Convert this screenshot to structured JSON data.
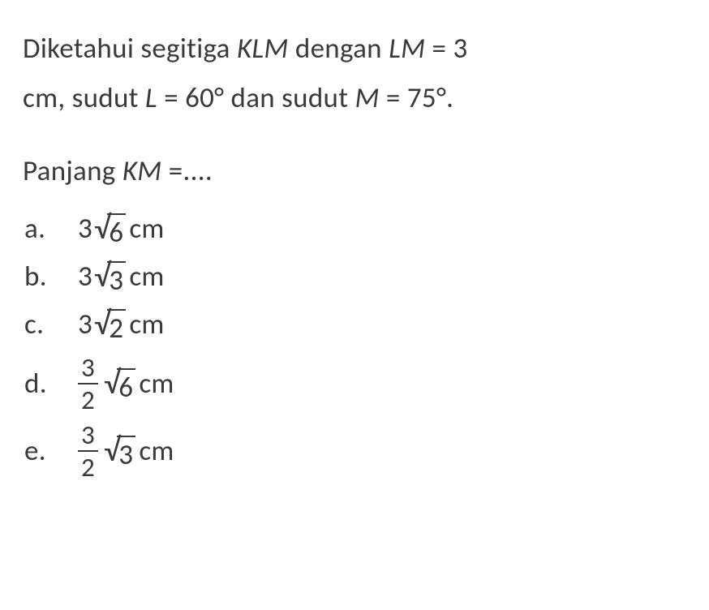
{
  "question": {
    "line1_pre": "Diketahui segitiga ",
    "line1_var1": "KLM",
    "line1_mid": " dengan ",
    "line1_var2": "LM",
    "line1_post": " = 3",
    "line2_pre": "cm, sudut ",
    "line2_var1": "L",
    "line2_mid1": " = 60° dan sudut ",
    "line2_var2": "M",
    "line2_post": " = 75°.",
    "ask_pre": "Panjang ",
    "ask_var": "KM",
    "ask_post": " =...."
  },
  "options": {
    "a": {
      "label": "a.",
      "coef": "3",
      "radicand": "6",
      "unit": " cm",
      "hasFraction": false
    },
    "b": {
      "label": "b.",
      "coef": "3",
      "radicand": "3",
      "unit": " cm",
      "hasFraction": false
    },
    "c": {
      "label": "c.",
      "coef": "3",
      "radicand": "2",
      "unit": " cm",
      "hasFraction": false
    },
    "d": {
      "label": "d.",
      "numerator": "3",
      "denominator": "2",
      "radicand": "6",
      "unit": " cm",
      "hasFraction": true
    },
    "e": {
      "label": "e.",
      "numerator": "3",
      "denominator": "2",
      "radicand": "3",
      "unit": " cm",
      "hasFraction": true
    }
  },
  "style": {
    "text_color": "#3a3a3a",
    "background_color": "#ffffff",
    "font_size_body": 35,
    "font_family": "Calibri",
    "sqrt_bar_thickness": 2.3,
    "frac_bar_thickness": 2.3
  }
}
